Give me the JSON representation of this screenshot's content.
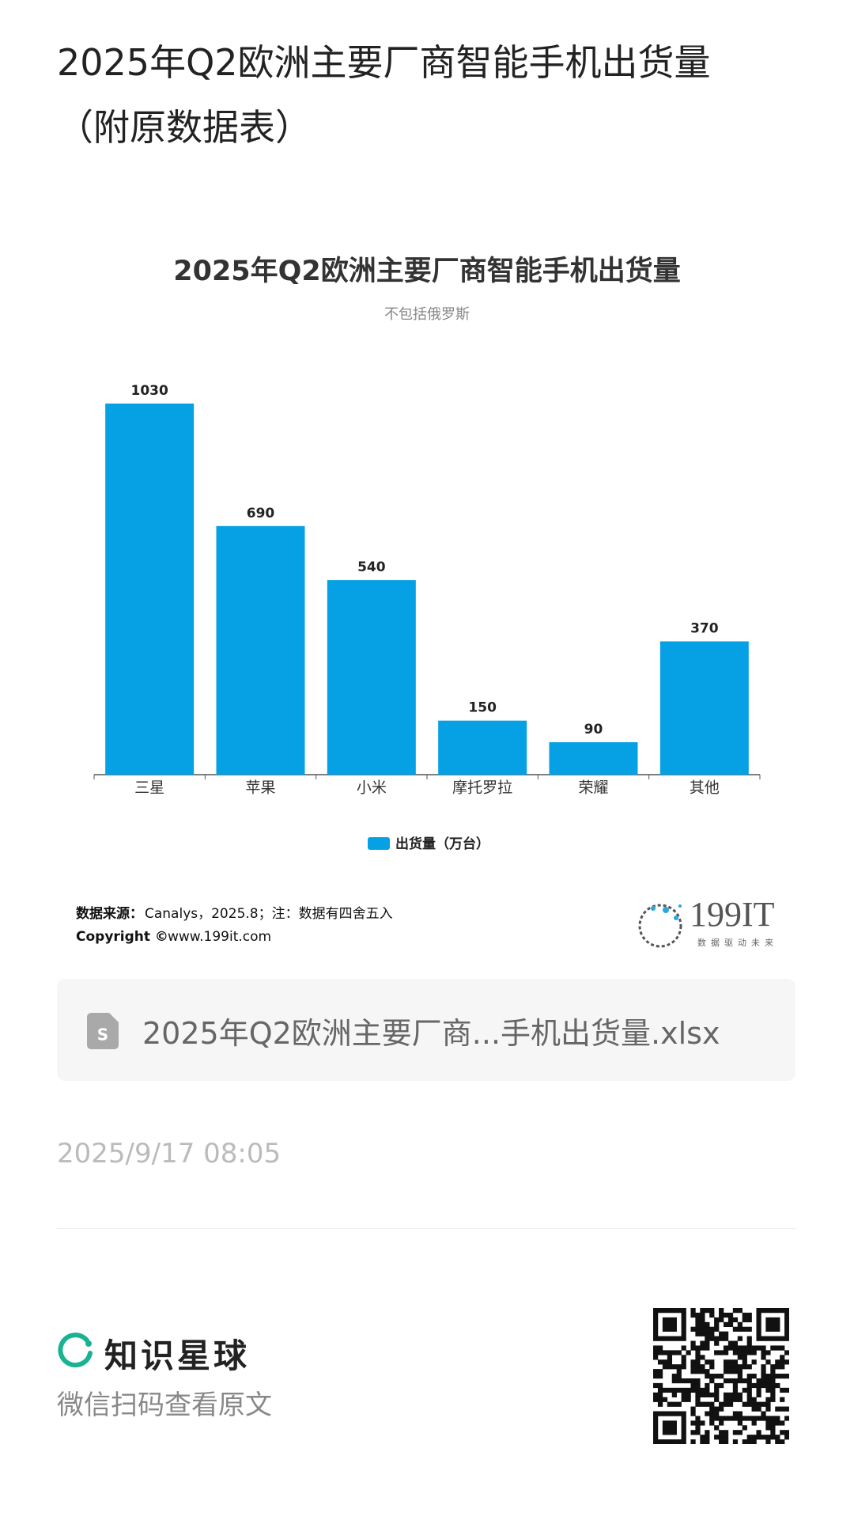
{
  "header": {
    "title": "2025年Q2欧洲主要厂商智能手机出货量（附原数据表）"
  },
  "chart_data": {
    "type": "bar",
    "title": "2025年Q2欧洲主要厂商智能手机出货量",
    "subtitle": "不包括俄罗斯",
    "categories": [
      "三星",
      "苹果",
      "小米",
      "摩托罗拉",
      "荣耀",
      "其他"
    ],
    "series": [
      {
        "name": "出货量（万台）",
        "color": "#06a0e4",
        "values": [
          1030,
          690,
          540,
          150,
          90,
          370
        ]
      }
    ],
    "legend": "bottom",
    "source_label": "数据来源：",
    "source": "Canalys，2025.8；注：数据有四舍五入",
    "copyright_label": "Copyright ©",
    "copyright": "www.199it.com",
    "logo": "199IT",
    "logo_tagline": "数据驱动未来"
  },
  "attachment": {
    "filename": "2025年Q2欧洲主要厂商...手机出货量.xlsx"
  },
  "date": "2025/9/17 08:05",
  "footer": {
    "brand": "知识星球",
    "hint": "微信扫码查看原文"
  }
}
